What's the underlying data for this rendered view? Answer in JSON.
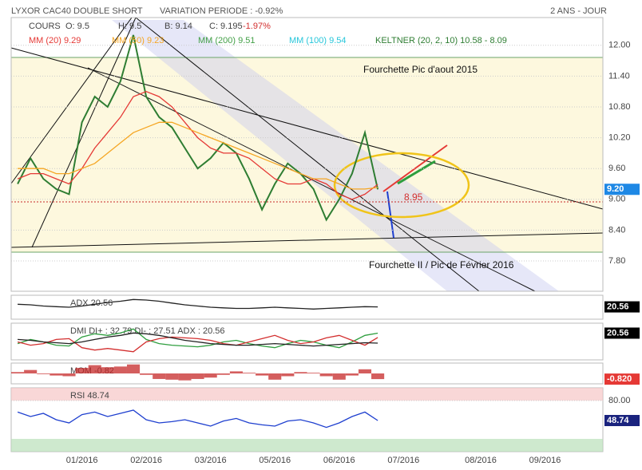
{
  "header": {
    "title": "LYXOR CAC40 DOUBLE SHORT",
    "subtitle": "VARIATION PERIODE : -0.92%",
    "period": "2 ANS - JOUR"
  },
  "chart_data": [
    {
      "type": "line",
      "ohlc_labels": [
        "COURS",
        "O: 9.5",
        "H: 9.5",
        "B: 9.14",
        "C: 9.195",
        "-1.97%"
      ],
      "extra_legend": [
        {
          "name": "MM (200) 9.51",
          "color": "#43a047"
        },
        {
          "name": "MM (100) 9.54",
          "color": "#26c6da"
        },
        {
          "name": "KELTNER (20, 2, 10) 10.58 - 8.09",
          "color": "#2e7d32"
        }
      ],
      "annotations": [
        "Fourchette Pic d'aout 2015",
        "Fourchette II / Pic de Février 2016",
        "8.95"
      ],
      "last_label": "9.20",
      "badge_color": "#1e88e5",
      "categories": [
        null,
        null,
        null,
        null,
        null,
        "01/2016",
        null,
        null,
        null,
        null,
        "02/2016",
        null,
        null,
        null,
        null,
        "03/2016",
        null,
        null,
        null,
        null,
        "05/2016",
        null,
        null,
        null,
        null,
        "06/2016",
        null,
        null,
        null,
        null,
        "07/2016",
        null,
        null,
        null,
        null,
        null,
        "08/2016",
        null,
        null,
        null,
        null,
        "09/2016",
        null,
        null,
        null,
        null
      ],
      "series": [
        {
          "name": "COURS",
          "color": "#2e7d32",
          "values": [
            9.3,
            9.8,
            9.4,
            9.2,
            9.1,
            10.5,
            11.0,
            10.8,
            11.3,
            12.2,
            11.0,
            10.6,
            10.4,
            10.0,
            9.6,
            9.8,
            10.1,
            9.9,
            9.4,
            8.8,
            9.3,
            9.7,
            9.5,
            9.2,
            8.6,
            9.0,
            9.5,
            10.3,
            9.195,
            null,
            null,
            null,
            null,
            null,
            null,
            null,
            null,
            null,
            null,
            null,
            null,
            null,
            null,
            null,
            null,
            null
          ]
        },
        {
          "name": "MM (20) 9.29",
          "color": "#e53935",
          "values": [
            9.4,
            9.5,
            9.5,
            9.4,
            9.3,
            9.6,
            10.0,
            10.3,
            10.6,
            11.0,
            11.1,
            11.0,
            10.8,
            10.5,
            10.2,
            10.0,
            9.9,
            9.9,
            9.8,
            9.6,
            9.4,
            9.3,
            9.3,
            9.4,
            9.3,
            9.1,
            9.0,
            9.1,
            9.29,
            null,
            null,
            null,
            null,
            null,
            null,
            null,
            null,
            null,
            null,
            null,
            null,
            null,
            null,
            null,
            null,
            null
          ]
        },
        {
          "name": "MM (50) 9.23",
          "color": "#f5a623",
          "values": [
            9.6,
            9.6,
            9.6,
            9.5,
            9.5,
            9.6,
            9.7,
            9.9,
            10.1,
            10.3,
            10.4,
            10.5,
            10.5,
            10.4,
            10.3,
            10.2,
            10.1,
            10.0,
            9.9,
            9.8,
            9.7,
            9.6,
            9.5,
            9.4,
            9.4,
            9.3,
            9.2,
            9.2,
            9.23,
            null,
            null,
            null,
            null,
            null,
            null,
            null,
            null,
            null,
            null,
            null,
            null,
            null,
            null,
            null,
            null,
            null
          ]
        }
      ],
      "ylim": [
        7.21,
        12.54
      ],
      "yticks": [
        {
          "value": 7.8,
          "label": "7.80"
        },
        {
          "value": 8.4,
          "label": "8.40"
        },
        {
          "value": 9.0,
          "label": "9.00"
        },
        {
          "value": 9.6,
          "label": "9.60"
        },
        {
          "value": 10.2,
          "label": "10.20"
        },
        {
          "value": 10.8,
          "label": "10.80"
        },
        {
          "value": 11.4,
          "label": "11.40"
        },
        {
          "value": 12.0,
          "label": "12.00"
        }
      ]
    },
    {
      "type": "line",
      "title": "ADX 20.56",
      "last_label": "20.56",
      "badge_color": "#000000",
      "ylim": [
        0,
        40
      ],
      "yticks": [],
      "series": [
        {
          "color": "#222222",
          "values": [
            25,
            24,
            22,
            21,
            20,
            22,
            25,
            28,
            30,
            33,
            32,
            30,
            27,
            24,
            22,
            20,
            19,
            18,
            18,
            19,
            20,
            19,
            18,
            17,
            18,
            19,
            20,
            21,
            20.56,
            null,
            null,
            null,
            null,
            null,
            null,
            null,
            null,
            null,
            null,
            null,
            null,
            null,
            null,
            null,
            null,
            null
          ]
        }
      ]
    },
    {
      "type": "line",
      "title": "DMI DI+ : 32.79 DI- : 27.51 ADX : 20.56",
      "last_label": "20.56",
      "badge_color": "#000000",
      "ylim": [
        0,
        45
      ],
      "yticks": [],
      "series": [
        {
          "color": "#2e9e3e",
          "values": [
            20,
            25,
            22,
            18,
            17,
            28,
            32,
            30,
            33,
            38,
            25,
            20,
            18,
            17,
            16,
            18,
            22,
            24,
            20,
            17,
            15,
            20,
            24,
            22,
            18,
            15,
            22,
            30,
            32.79,
            null,
            null,
            null,
            null,
            null,
            null,
            null,
            null,
            null,
            null,
            null,
            null,
            null,
            null,
            null,
            null,
            null
          ]
        },
        {
          "color": "#d32f2f",
          "values": [
            22,
            18,
            20,
            25,
            26,
            15,
            12,
            14,
            12,
            10,
            22,
            26,
            28,
            27,
            26,
            24,
            20,
            18,
            22,
            26,
            30,
            24,
            20,
            22,
            27,
            30,
            24,
            18,
            27.51,
            null,
            null,
            null,
            null,
            null,
            null,
            null,
            null,
            null,
            null,
            null,
            null,
            null,
            null,
            null,
            null,
            null
          ]
        },
        {
          "color": "#222222",
          "values": [
            25,
            24,
            22,
            21,
            20,
            22,
            25,
            28,
            30,
            33,
            32,
            30,
            27,
            24,
            22,
            20,
            19,
            18,
            18,
            19,
            20,
            19,
            18,
            17,
            18,
            19,
            20,
            21,
            20.56,
            null,
            null,
            null,
            null,
            null,
            null,
            null,
            null,
            null,
            null,
            null,
            null,
            null,
            null,
            null,
            null,
            null
          ]
        }
      ]
    },
    {
      "type": "area",
      "title": "MOM -0.82",
      "last_label": "-0.820",
      "badge_color": "#e53935",
      "ylim": [
        -1.5,
        1.5
      ],
      "yticks": [],
      "series": [
        {
          "color": "#c62828",
          "values": [
            0.2,
            0.5,
            -0.1,
            -0.3,
            -0.4,
            0.8,
            1.2,
            0.9,
            1.0,
            1.3,
            -0.2,
            -0.8,
            -0.9,
            -1.0,
            -0.8,
            -0.6,
            -0.2,
            0.3,
            0.1,
            -0.3,
            -0.9,
            -0.4,
            0.2,
            0.1,
            -0.4,
            -0.9,
            -0.3,
            0.6,
            -0.82,
            null,
            null,
            null,
            null,
            null,
            null,
            null,
            null,
            null,
            null,
            null,
            null,
            null,
            null,
            null,
            null,
            null
          ]
        }
      ]
    },
    {
      "type": "line",
      "title": "RSI 48.74",
      "last_label": "48.74",
      "badge_color": "#1a237e",
      "ylim": [
        0,
        100
      ],
      "yticks": [
        {
          "value": 80,
          "label": "80.00"
        }
      ],
      "bands": [
        80,
        20
      ],
      "series": [
        {
          "color": "#1e3fcf",
          "values": [
            62,
            55,
            60,
            50,
            45,
            58,
            62,
            55,
            60,
            65,
            50,
            45,
            47,
            50,
            45,
            40,
            48,
            52,
            45,
            42,
            40,
            48,
            50,
            45,
            38,
            45,
            55,
            62,
            48.74,
            null,
            null,
            null,
            null,
            null,
            null,
            null,
            null,
            null,
            null,
            null,
            null,
            null,
            null,
            null,
            null,
            null
          ]
        }
      ]
    }
  ]
}
